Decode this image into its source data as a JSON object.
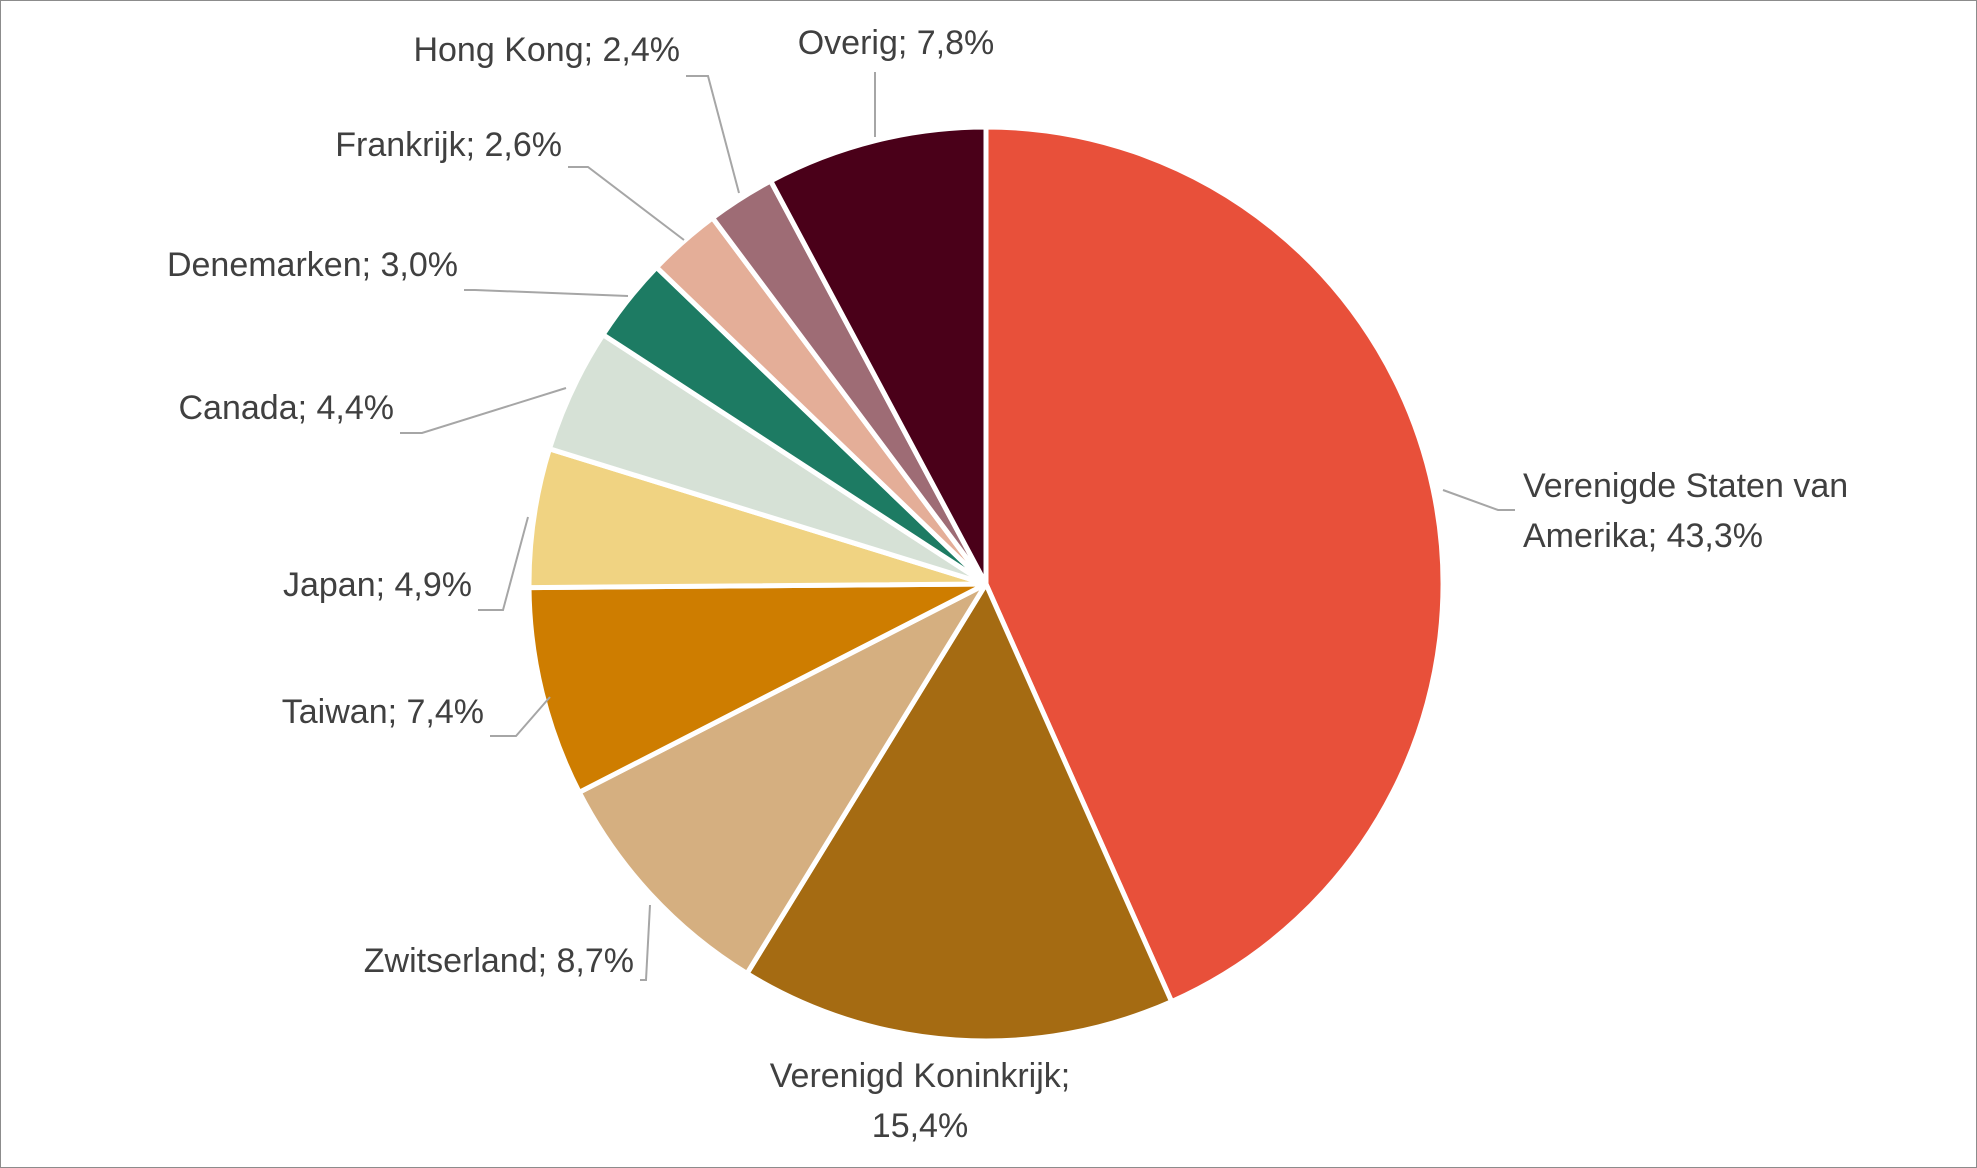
{
  "chart_data": {
    "type": "pie",
    "title": "",
    "slices": [
      {
        "label": "Verenigde Staten van Amerika",
        "value": 43.3,
        "display": "Verenigde Staten van Amerika; 43,3%",
        "lines": [
          "Verenigde Staten van",
          "Amerika; 43,3%"
        ],
        "color": "#E8503A"
      },
      {
        "label": "Verenigd Koninkrijk",
        "value": 15.4,
        "display": "Verenigd Koninkrijk; 15,4%",
        "lines": [
          "Verenigd Koninkrijk;",
          "15,4%"
        ],
        "color": "#A56B12"
      },
      {
        "label": "Zwitserland",
        "value": 8.7,
        "display": "Zwitserland; 8,7%",
        "lines": [
          "Zwitserland; 8,7%"
        ],
        "color": "#D5AF80"
      },
      {
        "label": "Taiwan",
        "value": 7.4,
        "display": "Taiwan; 7,4%",
        "lines": [
          "Taiwan; 7,4%"
        ],
        "color": "#CE7D00"
      },
      {
        "label": "Japan",
        "value": 4.9,
        "display": "Japan; 4,9%",
        "lines": [
          "Japan; 4,9%"
        ],
        "color": "#F0D382"
      },
      {
        "label": "Canada",
        "value": 4.4,
        "display": "Canada; 4,4%",
        "lines": [
          "Canada; 4,4%"
        ],
        "color": "#D6E1D6"
      },
      {
        "label": "Denemarken",
        "value": 3.0,
        "display": "Denemarken; 3,0%",
        "lines": [
          "Denemarken; 3,0%"
        ],
        "color": "#1D7B63"
      },
      {
        "label": "Frankrijk",
        "value": 2.6,
        "display": "Frankrijk; 2,6%",
        "lines": [
          "Frankrijk; 2,6%"
        ],
        "color": "#E4AE98"
      },
      {
        "label": "Hong Kong",
        "value": 2.4,
        "display": "Hong Kong; 2,4%",
        "lines": [
          "Hong Kong; 2,4%"
        ],
        "color": "#9E6C75"
      },
      {
        "label": "Overig",
        "value": 7.8,
        "display": "Overig; 7,8%",
        "lines": [
          "Overig; 7,8%"
        ],
        "color": "#4A0019"
      }
    ],
    "start": "top",
    "direction": "clockwise",
    "legend": "none",
    "label_style": "outside with leader lines"
  }
}
